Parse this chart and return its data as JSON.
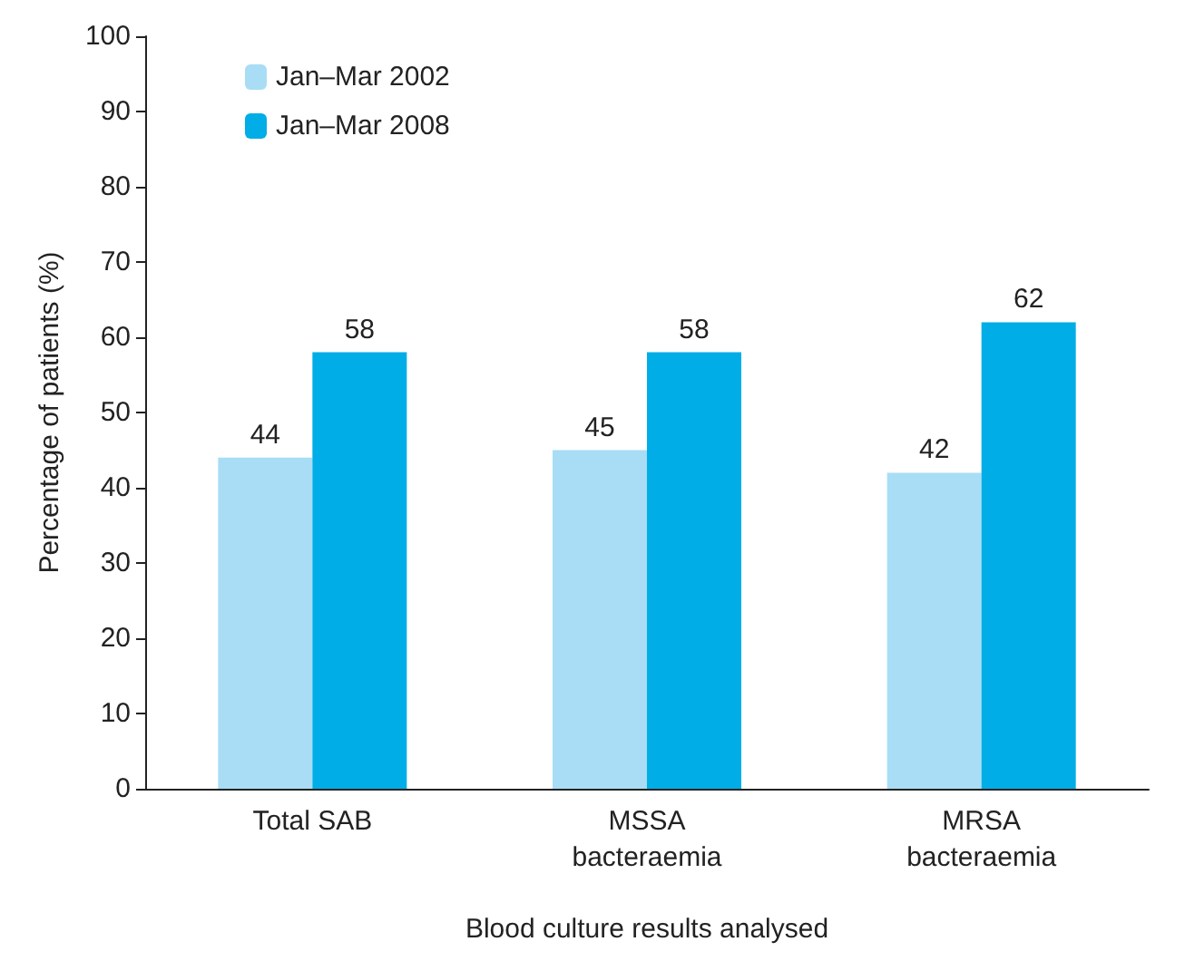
{
  "chart_data": {
    "type": "bar",
    "xlabel": "Blood culture results analysed",
    "ylabel": "Percentage of patients (%)",
    "categories": [
      "Total SAB",
      "MSSA\nbacteraemia",
      "MRSA\nbacteraemia"
    ],
    "series": [
      {
        "name": "Jan–Mar 2002",
        "color": "#a8ddf5",
        "values": [
          44,
          45,
          42
        ]
      },
      {
        "name": "Jan–Mar 2008",
        "color": "#00ade6",
        "values": [
          58,
          58,
          62
        ]
      }
    ],
    "ylim": [
      0,
      100
    ],
    "yticks": [
      0,
      10,
      20,
      30,
      40,
      50,
      60,
      70,
      80,
      90,
      100
    ],
    "data_labels": true,
    "legend": "top left",
    "grid": false
  }
}
